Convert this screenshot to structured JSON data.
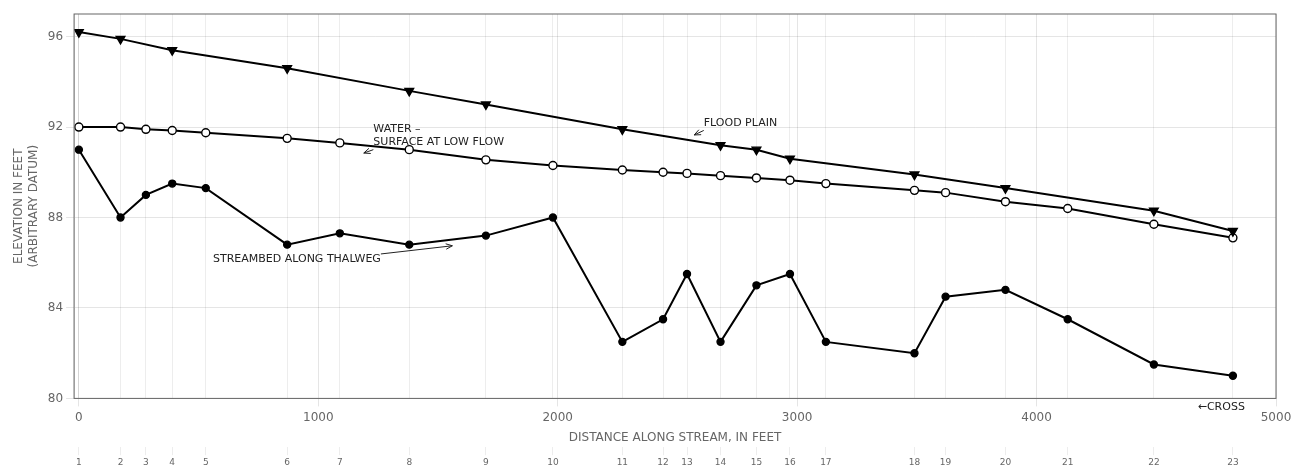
{
  "chart_data": {
    "type": "line",
    "xlabel": "DISTANCE ALONG STREAM, IN FEET",
    "ylabel": "ELEVATION IN FEET\n(ARBITRARY DATUM)",
    "xlim": [
      -20,
      5000
    ],
    "xticks": [
      0,
      1000,
      2000,
      3000,
      4000,
      5000
    ],
    "ylim": [
      80,
      97
    ],
    "yticks": [
      80,
      84,
      88,
      92,
      96
    ],
    "x2lim": [
      -20,
      5000
    ],
    "x2ticks": [
      {
        "value": 0,
        "label": "1"
      },
      {
        "value": 174,
        "label": "2"
      },
      {
        "value": 280,
        "label": "3"
      },
      {
        "value": 390,
        "label": "4"
      },
      {
        "value": 530,
        "label": "5"
      },
      {
        "value": 870,
        "label": "6"
      },
      {
        "value": 1090,
        "label": "7"
      },
      {
        "value": 1380,
        "label": "8"
      },
      {
        "value": 1700,
        "label": "9"
      },
      {
        "value": 1980,
        "label": "10"
      },
      {
        "value": 2270,
        "label": "11"
      },
      {
        "value": 2440,
        "label": "12"
      },
      {
        "value": 2540,
        "label": "13"
      },
      {
        "value": 2680,
        "label": "14"
      },
      {
        "value": 2830,
        "label": "15"
      },
      {
        "value": 2970,
        "label": "16"
      },
      {
        "value": 3120,
        "label": "17"
      },
      {
        "value": 3490,
        "label": "18"
      },
      {
        "value": 3620,
        "label": "19"
      },
      {
        "value": 3870,
        "label": "20"
      },
      {
        "value": 4130,
        "label": "21"
      },
      {
        "value": 4490,
        "label": "22"
      },
      {
        "value": 4820,
        "label": "23"
      }
    ],
    "grid": true,
    "series": [
      {
        "color": "black",
        "marker": "triangle_down",
        "line_style": "solid",
        "x": [
          0,
          174,
          390,
          870,
          1380,
          1700,
          2270,
          2680,
          2830,
          2970,
          3490,
          3870,
          4490,
          4820
        ],
        "values": [
          96.2,
          95.9,
          95.4,
          94.6,
          93.6,
          93.0,
          91.9,
          91.2,
          91.0,
          90.6,
          89.9,
          89.3,
          88.3,
          87.4
        ]
      },
      {
        "color": "black",
        "marker": "circle_open",
        "line_style": "solid",
        "x": [
          0,
          174,
          280,
          390,
          530,
          870,
          1090,
          1380,
          1700,
          1980,
          2270,
          2440,
          2540,
          2680,
          2830,
          2970,
          3120,
          3490,
          3620,
          3870,
          4130,
          4490,
          4820
        ],
        "values": [
          92.0,
          92.0,
          91.9,
          91.85,
          91.75,
          91.5,
          91.3,
          91.0,
          90.55,
          90.3,
          90.1,
          90.0,
          89.95,
          89.85,
          89.75,
          89.65,
          89.5,
          89.2,
          89.1,
          88.7,
          88.4,
          87.7,
          87.1
        ]
      },
      {
        "color": "black",
        "marker": "circle",
        "line_style": "solid",
        "x": [
          0,
          174,
          280,
          390,
          530,
          870,
          1090,
          1380,
          1700,
          1980,
          2270,
          2440,
          2540,
          2680,
          2830,
          2970,
          3120,
          3490,
          3620,
          3870,
          4130,
          4490,
          4820
        ],
        "values": [
          91.0,
          88.0,
          89.0,
          89.5,
          89.3,
          86.8,
          87.3,
          86.8,
          87.2,
          88.0,
          82.5,
          83.5,
          85.5,
          82.5,
          85.0,
          85.5,
          82.5,
          82.0,
          84.5,
          84.8,
          83.5,
          81.5,
          81.0
        ]
      }
    ],
    "annotations": [
      {
        "text": "FLOOD PLAIN",
        "x": 2610,
        "y": 91.85,
        "arrow_x": 2570,
        "arrow_y": 91.65
      },
      {
        "text": "WATER –\nSURFACE AT LOW FLOW",
        "x": 1230,
        "y": 91.0,
        "arrow_x": 1190,
        "arrow_y": 90.85
      },
      {
        "text": "STREAMBED ALONG THALWEG",
        "x": 560,
        "y": 86.1,
        "arrow_x": 1560,
        "arrow_y": 86.75
      },
      {
        "text": "←CROSS",
        "x": 4870,
        "y": 79.85
      }
    ]
  }
}
